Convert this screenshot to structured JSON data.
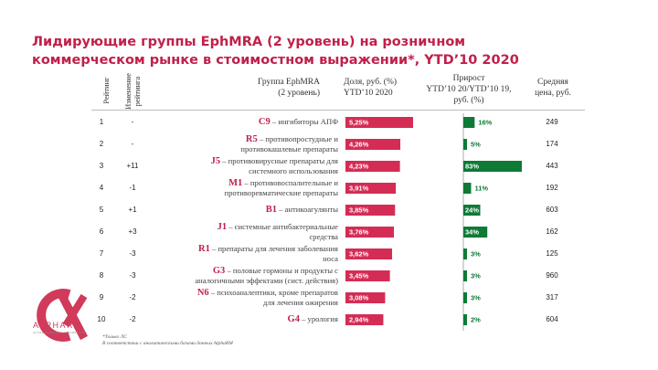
{
  "title": "Лидирующие группы EphMRA (2 уровень) на розничном коммерческом рынке в стоимостном выражении*, YTD’10 2020",
  "headers": {
    "rank": "Рейтинг",
    "rank_change": "Изменение рейтинга",
    "group_l1": "Группа EphMRA",
    "group_l2": "(2 уровень)",
    "share_l1": "Доля, руб. (%)",
    "share_l2": "YTD’10 2020",
    "growth_l1": "Прирост",
    "growth_l2": "YTD’10 20/YTD’10 19,",
    "growth_l3": "руб. (%)",
    "price_l1": "Средняя",
    "price_l2": "цена, руб."
  },
  "chart_data": {
    "type": "table",
    "title": "Лидирующие группы EphMRA (2 уровень) на розничном коммерческом рынке в стоимостном выражении*, YTD’10 2020",
    "share_label_suffix": "%",
    "growth_label_suffix": "%",
    "share_xlim": [
      0,
      5.25
    ],
    "growth_xlim": [
      0,
      83
    ],
    "bar_color_share": "#d42c55",
    "bar_color_growth": "#0e7a36",
    "rows": [
      {
        "rank": "1",
        "change": "-",
        "code": "C9",
        "desc": "– ингибиторы АПФ",
        "desc2": "",
        "share": 5.25,
        "share_label": "5,25%",
        "growth": 16,
        "growth_label": "16%",
        "price": "249"
      },
      {
        "rank": "2",
        "change": "-",
        "code": "R5",
        "desc": "– противопростудные и",
        "desc2": "противокашлевые препараты",
        "share": 4.26,
        "share_label": "4,26%",
        "growth": 5,
        "growth_label": "5%",
        "price": "174"
      },
      {
        "rank": "3",
        "change": "+11",
        "code": "J5",
        "desc": "– противовирусные препараты для",
        "desc2": "системного использования",
        "share": 4.23,
        "share_label": "4,23%",
        "growth": 83,
        "growth_label": "83%",
        "price": "443"
      },
      {
        "rank": "4",
        "change": "-1",
        "code": "M1",
        "desc": "– противовоспалительные и",
        "desc2": "противоревматические препараты",
        "share": 3.91,
        "share_label": "3,91%",
        "growth": 11,
        "growth_label": "11%",
        "price": "192"
      },
      {
        "rank": "5",
        "change": "+1",
        "code": "B1",
        "desc": "– антикоагулянты",
        "desc2": "",
        "share": 3.85,
        "share_label": "3,85%",
        "growth": 24,
        "growth_label": "24%",
        "price": "603"
      },
      {
        "rank": "6",
        "change": "+3",
        "code": "J1",
        "desc": "– системные антибактериальные",
        "desc2": "средства",
        "share": 3.76,
        "share_label": "3,76%",
        "growth": 34,
        "growth_label": "34%",
        "price": "162"
      },
      {
        "rank": "7",
        "change": "-3",
        "code": "R1",
        "desc": "– препараты для лечения заболевания",
        "desc2": "носа",
        "share": 3.62,
        "share_label": "3,62%",
        "growth": 3,
        "growth_label": "3%",
        "price": "125"
      },
      {
        "rank": "8",
        "change": "-3",
        "code": "G3",
        "desc": "– половые гормоны и продукты с",
        "desc2": "аналогичными эффектами (сист. действия)",
        "share": 3.45,
        "share_label": "3,45%",
        "growth": 3,
        "growth_label": "3%",
        "price": "960"
      },
      {
        "rank": "9",
        "change": "-2",
        "code": "N6",
        "desc": "– психоаналептики, кроме препаратов",
        "desc2": "для лечения ожирения",
        "share": 3.08,
        "share_label": "3,08%",
        "growth": 3,
        "growth_label": "3%",
        "price": "317"
      },
      {
        "rank": "10",
        "change": "-2",
        "code": "G4",
        "desc": "– урология",
        "desc2": "",
        "share": 2.94,
        "share_label": "2,94%",
        "growth": 2,
        "growth_label": "2%",
        "price": "604"
      }
    ]
  },
  "footnotes": {
    "line1": "*Только ЛС",
    "line2": "В соответствии с аналитическими базами данных AlphaRM"
  },
  "logo": {
    "text": "ALPHARM",
    "sub": "ALPHA RESEARCH & MARKETING"
  }
}
